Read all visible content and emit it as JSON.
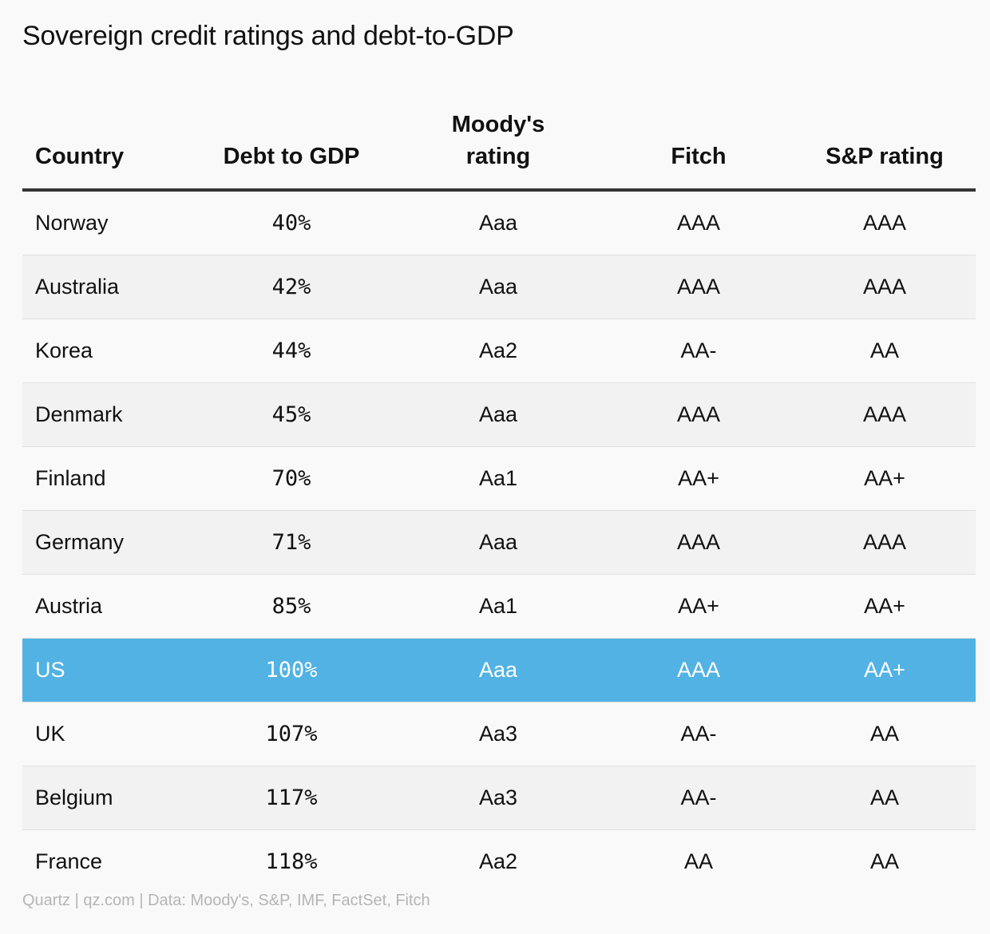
{
  "chart_data": {
    "type": "table",
    "title": "Sovereign credit ratings and debt-to-GDP",
    "columns": [
      "Country",
      "Debt to GDP",
      "Moody's rating",
      "Fitch",
      "S&P rating"
    ],
    "rows": [
      {
        "country": "Norway",
        "debt_to_gdp": "40%",
        "moodys": "Aaa",
        "fitch": "AAA",
        "sp": "AAA"
      },
      {
        "country": "Australia",
        "debt_to_gdp": "42%",
        "moodys": "Aaa",
        "fitch": "AAA",
        "sp": "AAA"
      },
      {
        "country": "Korea",
        "debt_to_gdp": "44%",
        "moodys": "Aa2",
        "fitch": "AA-",
        "sp": "AA"
      },
      {
        "country": "Denmark",
        "debt_to_gdp": "45%",
        "moodys": "Aaa",
        "fitch": "AAA",
        "sp": "AAA"
      },
      {
        "country": "Finland",
        "debt_to_gdp": "70%",
        "moodys": "Aa1",
        "fitch": "AA+",
        "sp": "AA+"
      },
      {
        "country": "Germany",
        "debt_to_gdp": "71%",
        "moodys": "Aaa",
        "fitch": "AAA",
        "sp": "AAA"
      },
      {
        "country": "Austria",
        "debt_to_gdp": "85%",
        "moodys": "Aa1",
        "fitch": "AA+",
        "sp": "AA+"
      },
      {
        "country": "US",
        "debt_to_gdp": "100%",
        "moodys": "Aaa",
        "fitch": "AAA",
        "sp": "AA+"
      },
      {
        "country": "UK",
        "debt_to_gdp": "107%",
        "moodys": "Aa3",
        "fitch": "AA-",
        "sp": "AA"
      },
      {
        "country": "Belgium",
        "debt_to_gdp": "117%",
        "moodys": "Aa3",
        "fitch": "AA-",
        "sp": "AA"
      },
      {
        "country": "France",
        "debt_to_gdp": "118%",
        "moodys": "Aa2",
        "fitch": "AA",
        "sp": "AA"
      }
    ],
    "highlighted_row": "US",
    "highlight_color": "#52b2e3",
    "source": "Quartz | qz.com | Data: Moody's, S&P, IMF, FactSet, Fitch"
  }
}
